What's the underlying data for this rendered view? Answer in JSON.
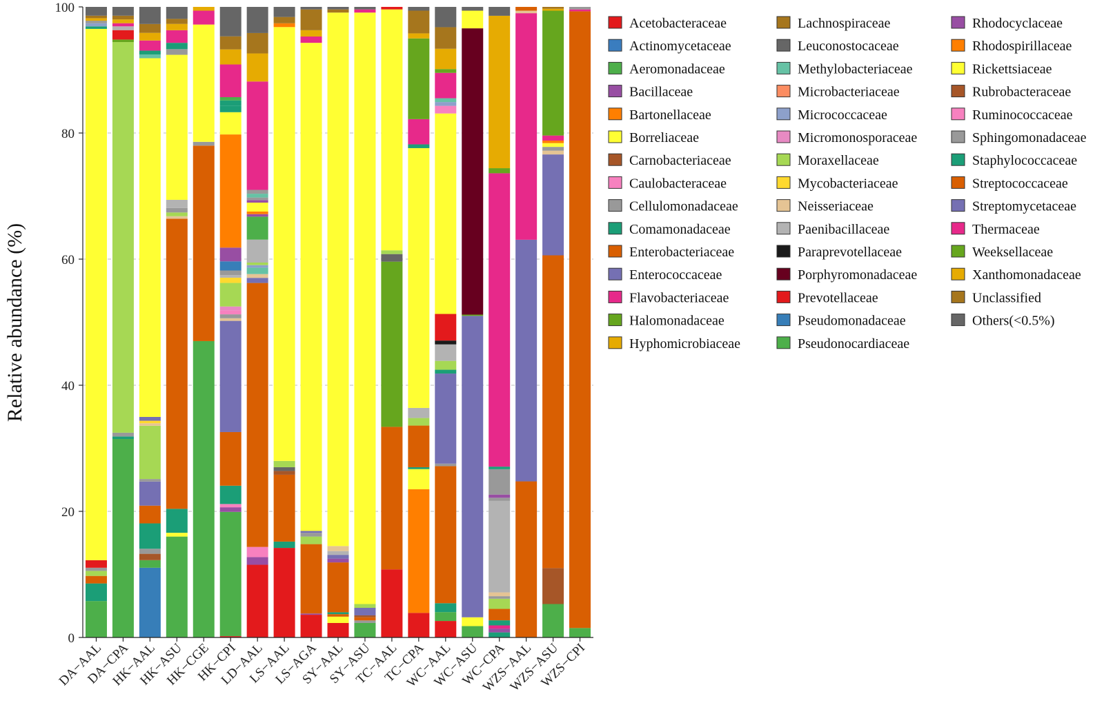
{
  "chart_data": {
    "type": "bar",
    "stacked": true,
    "title": "",
    "xlabel": "",
    "ylabel": "Relative abundance (%)",
    "ylim": [
      0,
      100
    ],
    "yticks": [
      0,
      20,
      40,
      60,
      80,
      100
    ],
    "grid": "horizontal dashed",
    "legend_position": "right",
    "categories": [
      "DA−AAL",
      "DA−CPA",
      "HK−AAL",
      "HK−ASU",
      "HK−CGE",
      "HK−CPI",
      "LD−AAL",
      "LS−AAL",
      "LS−AGA",
      "SY−AAL",
      "SY−ASU",
      "TC−AAL",
      "TC−CPA",
      "WC−AAL",
      "WC−ASU",
      "WC−CPA",
      "WZS−AAL",
      "WZS−ASU",
      "WZS−CPI"
    ],
    "series_colors": {
      "Acetobacteraceae": "#e31a1c",
      "Actinomycetaceae": "#3a7dbf",
      "Aeromonadaceae": "#4daf4a",
      "Bacillaceae": "#984ea3",
      "Bartonellaceae": "#ff7f00",
      "Borreliaceae": "#ffff33",
      "Carnobacteriaceae": "#a65628",
      "Caulobacteraceae": "#f781bf",
      "Cellulomonadaceae": "#999999",
      "Comamonadaceae": "#1b9e77",
      "Enterobacteriaceae": "#d95f02",
      "Enterococcaceae": "#7570b3",
      "Flavobacteriaceae": "#e7298a",
      "Halomonadaceae": "#66a61e",
      "Hyphomicrobiaceae": "#e6ab02",
      "Lachnospiraceae": "#a6761d",
      "Leuconostocaceae": "#666666",
      "Methylobacteriaceae": "#66c2a5",
      "Microbacteriaceae": "#fc8d62",
      "Micrococcaceae": "#8da0cb",
      "Micromonosporaceae": "#e78ac3",
      "Moraxellaceae": "#a6d854",
      "Mycobacteriaceae": "#ffd92f",
      "Neisseriaceae": "#e5c494",
      "Paenibacillaceae": "#b3b3b3",
      "Paraprevotellaceae": "#1a1a1a",
      "Porphyromonadaceae": "#67001f",
      "Prevotellaceae": "#e31a1c",
      "Pseudomonadaceae": "#377eb8",
      "Pseudonocardiaceae": "#4daf4a",
      "Rhodocyclaceae": "#984ea3",
      "Rhodospirillaceae": "#ff7f00",
      "Rickettsiaceae": "#ffff33",
      "Rubrobacteraceae": "#a65628",
      "Ruminococcaceae": "#f781bf",
      "Sphingomonadaceae": "#999999",
      "Staphylococcaceae": "#1b9e77",
      "Streptococcaceae": "#d95f02",
      "Streptomycetaceae": "#7570b3",
      "Thermaceae": "#e7298a",
      "Weeksellaceae": "#66a61e",
      "Xanthomonadaceae": "#e6ab02",
      "Unclassified": "#a6761d",
      "Others(<0.5%)": "#666666"
    },
    "legend_columns": [
      [
        "Acetobacteraceae",
        "Actinomycetaceae",
        "Aeromonadaceae",
        "Bacillaceae",
        "Bartonellaceae",
        "Borreliaceae",
        "Carnobacteriaceae",
        "Caulobacteraceae",
        "Cellulomonadaceae",
        "Comamonadaceae",
        "Enterobacteriaceae",
        "Enterococcaceae",
        "Flavobacteriaceae",
        "Halomonadaceae",
        "Hyphomicrobiaceae"
      ],
      [
        "Lachnospiraceae",
        "Leuconostocaceae",
        "Methylobacteriaceae",
        "Microbacteriaceae",
        "Micrococcaceae",
        "Micromonosporaceae",
        "Moraxellaceae",
        "Mycobacteriaceae",
        "Neisseriaceae",
        "Paenibacillaceae",
        "Paraprevotellaceae",
        "Porphyromonadaceae",
        "Prevotellaceae",
        "Pseudomonadaceae",
        "Pseudonocardiaceae"
      ],
      [
        "Rhodocyclaceae",
        "Rhodospirillaceae",
        "Rickettsiaceae",
        "Rubrobacteraceae",
        "Ruminococcaceae",
        "Sphingomonadaceae",
        "Staphylococcaceae",
        "Streptococcaceae",
        "Streptomycetaceae",
        "Thermaceae",
        "Weeksellaceae",
        "Xanthomonadaceae",
        "Unclassified",
        "Others(<0.5%)"
      ]
    ],
    "stacks": [
      [
        [
          "Aeromonadaceae",
          5.8
        ],
        [
          "Comamonadaceae",
          2.8
        ],
        [
          "Enterobacteriaceae",
          1.2
        ],
        [
          "Moraxellaceae",
          0.8
        ],
        [
          "Cellulomonadaceae",
          0.5
        ],
        [
          "Prevotellaceae",
          1.2
        ],
        [
          "Borreliaceae",
          84.6
        ],
        [
          "Staphylococcaceae",
          0.4
        ],
        [
          "Micrococcaceae",
          0.5
        ],
        [
          "Sphingomonadaceae",
          0.4
        ],
        [
          "Hyphomicrobiaceae",
          0.4
        ],
        [
          "Lachnospiraceae",
          0.4
        ],
        [
          "Others(<0.5%)",
          1.4
        ]
      ],
      [
        [
          "Aeromonadaceae",
          31.6
        ],
        [
          "Comamonadaceae",
          0.4
        ],
        [
          "Cellulomonadaceae",
          0.6
        ],
        [
          "Moraxellaceae",
          62.2
        ],
        [
          "Halomonadaceae",
          0.4
        ],
        [
          "Prevotellaceae",
          1.5
        ],
        [
          "Paenibacillaceae",
          0.6
        ],
        [
          "Flavobacteriaceae",
          0.5
        ],
        [
          "Hyphomicrobiaceae",
          0.6
        ],
        [
          "Lachnospiraceae",
          0.6
        ],
        [
          "Others(<0.5%)",
          1.4
        ]
      ],
      [
        [
          "Pseudomonadaceae",
          11.0
        ],
        [
          "Aeromonadaceae",
          1.2
        ],
        [
          "Carnobacteriaceae",
          1.0
        ],
        [
          "Sphingomonadaceae",
          0.8
        ],
        [
          "Comamonadaceae",
          4.0
        ],
        [
          "Enterobacteriaceae",
          2.8
        ],
        [
          "Enterococcaceae",
          3.8
        ],
        [
          "Cellulomonadaceae",
          0.4
        ],
        [
          "Moraxellaceae",
          8.4
        ],
        [
          "Neisseriaceae",
          0.4
        ],
        [
          "Mycobacteriaceae",
          0.4
        ],
        [
          "Streptomycetaceae",
          0.6
        ],
        [
          "Borreliaceae",
          56.6
        ],
        [
          "Methylobacteriaceae",
          0.6
        ],
        [
          "Staphylococcaceae",
          0.6
        ],
        [
          "Flavobacteriaceae",
          1.6
        ],
        [
          "Hyphomicrobiaceae",
          1.2
        ],
        [
          "Lachnospiraceae",
          1.4
        ],
        [
          "Others(<0.5%)",
          2.7
        ]
      ],
      [
        [
          "Aeromonadaceae",
          16.0
        ],
        [
          "Borreliaceae",
          0.6
        ],
        [
          "Comamonadaceae",
          3.8
        ],
        [
          "Enterobacteriaceae",
          46.0
        ],
        [
          "Neisseriaceae",
          0.4
        ],
        [
          "Moraxellaceae",
          0.6
        ],
        [
          "Sphingomonadaceae",
          0.7
        ],
        [
          "Paenibacillaceae",
          1.3
        ],
        [
          "Borreliaceae",
          23.0
        ],
        [
          "Cellulomonadaceae",
          0.9
        ],
        [
          "Staphylococcaceae",
          1.0
        ],
        [
          "Flavobacteriaceae",
          2.0
        ],
        [
          "Hyphomicrobiaceae",
          1.0
        ],
        [
          "Lachnospiraceae",
          0.8
        ],
        [
          "Others(<0.5%)",
          1.9
        ]
      ],
      [
        [
          "Aeromonadaceae",
          47.0
        ],
        [
          "Enterobacteriaceae",
          31.0
        ],
        [
          "Cellulomonadaceae",
          0.6
        ],
        [
          "Borreliaceae",
          18.6
        ],
        [
          "Flavobacteriaceae",
          2.2
        ],
        [
          "Hyphomicrobiaceae",
          0.6
        ]
      ],
      [
        [
          "Acetobacteraceae",
          0.2
        ],
        [
          "Aeromonadaceae",
          19.0
        ],
        [
          "Bacillaceae",
          0.7
        ],
        [
          "Caulobacteraceae",
          0.5
        ],
        [
          "Comamonadaceae",
          2.8
        ],
        [
          "Enterobacteriaceae",
          8.2
        ],
        [
          "Enterococcaceae",
          17.0
        ],
        [
          "Neisseriaceae",
          0.4
        ],
        [
          "Cellulomonadaceae",
          0.6
        ],
        [
          "Caulobacteraceae",
          0.6
        ],
        [
          "Micromonosporaceae",
          0.6
        ],
        [
          "Moraxellaceae",
          3.6
        ],
        [
          "Mycobacteriaceae",
          0.8
        ],
        [
          "Paenibacillaceae",
          0.4
        ],
        [
          "Cellulomonadaceae",
          0.7
        ],
        [
          "Pseudomonadaceae",
          1.4
        ],
        [
          "Bacillaceae",
          2.1
        ],
        [
          "Rhodospirillaceae",
          17.3
        ],
        [
          "Borreliaceae",
          3.4
        ],
        [
          "Comamonadaceae",
          1.0
        ],
        [
          "Staphylococcaceae",
          0.8
        ],
        [
          "Aeromonadaceae",
          0.5
        ],
        [
          "Flavobacteriaceae",
          5.0
        ],
        [
          "Hyphomicrobiaceae",
          2.3
        ],
        [
          "Lachnospiraceae",
          2.0
        ],
        [
          "Others(<0.5%)",
          4.5
        ]
      ],
      [
        [
          "Prevotellaceae",
          11.4
        ],
        [
          "Bacillaceae",
          1.2
        ],
        [
          "Caulobacteraceae",
          1.6
        ],
        [
          "Enterobacteriaceae",
          41.4
        ],
        [
          "Enterococcaceae",
          0.8
        ],
        [
          "Neisseriaceae",
          0.6
        ],
        [
          "Methylobacteriaceae",
          1.0
        ],
        [
          "Micrococcaceae",
          0.4
        ],
        [
          "Moraxellaceae",
          0.4
        ],
        [
          "Paenibacillaceae",
          3.6
        ],
        [
          "Aeromonadaceae",
          3.6
        ],
        [
          "Bacillaceae",
          0.4
        ],
        [
          "Bartonellaceae",
          0.4
        ],
        [
          "Rickettsiaceae",
          1.4
        ],
        [
          "Bacillaceae",
          0.4
        ],
        [
          "Cellulomonadaceae",
          0.4
        ],
        [
          "Methylobacteriaceae",
          0.6
        ],
        [
          "Cellulomonadaceae",
          0.6
        ],
        [
          "Flavobacteriaceae",
          17.0
        ],
        [
          "Hyphomicrobiaceae",
          4.4
        ],
        [
          "Lachnospiraceae",
          3.2
        ],
        [
          "Others(<0.5%)",
          4.1
        ]
      ],
      [
        [
          "Prevotellaceae",
          14.2
        ],
        [
          "Staphylococcaceae",
          1.0
        ],
        [
          "Enterobacteriaceae",
          10.6
        ],
        [
          "Carnobacteriaceae",
          0.6
        ],
        [
          "Leuconostocaceae",
          0.6
        ],
        [
          "Moraxellaceae",
          1.0
        ],
        [
          "Borreliaceae",
          68.8
        ],
        [
          "Rhodospirillaceae",
          0.6
        ],
        [
          "Lachnospiraceae",
          1.0
        ],
        [
          "Others(<0.5%)",
          1.6
        ]
      ],
      [
        [
          "Prevotellaceae",
          3.6
        ],
        [
          "Bacillaceae",
          0.2
        ],
        [
          "Enterobacteriaceae",
          11.0
        ],
        [
          "Moraxellaceae",
          1.2
        ],
        [
          "Sphingomonadaceae",
          0.6
        ],
        [
          "Streptomycetaceae",
          0.3
        ],
        [
          "Borreliaceae",
          77.4
        ],
        [
          "Flavobacteriaceae",
          1.0
        ],
        [
          "Hyphomicrobiaceae",
          1.0
        ],
        [
          "Lachnospiraceae",
          3.3
        ],
        [
          "Others(<0.5%)",
          0.4
        ]
      ],
      [
        [
          "Prevotellaceae",
          2.3
        ],
        [
          "Borreliaceae",
          1.0
        ],
        [
          "Enterobacteriaceae",
          0.4
        ],
        [
          "Comamonadaceae",
          0.3
        ],
        [
          "Enterobacteriaceae",
          7.9
        ],
        [
          "Bacillaceae",
          0.6
        ],
        [
          "Streptomycetaceae",
          0.6
        ],
        [
          "Paenibacillaceae",
          0.6
        ],
        [
          "Neisseriaceae",
          0.8
        ],
        [
          "Borreliaceae",
          84.6
        ],
        [
          "Lachnospiraceae",
          0.5
        ],
        [
          "Others(<0.5%)",
          0.4
        ]
      ],
      [
        [
          "Aeromonadaceae",
          2.3
        ],
        [
          "Cellulomonadaceae",
          0.4
        ],
        [
          "Enterobacteriaceae",
          0.5
        ],
        [
          "Carnobacteriaceae",
          0.3
        ],
        [
          "Enterococcaceae",
          1.2
        ],
        [
          "Moraxellaceae",
          0.6
        ],
        [
          "Borreliaceae",
          93.8
        ],
        [
          "Flavobacteriaceae",
          0.5
        ],
        [
          "Others(<0.5%)",
          0.4
        ]
      ],
      [
        [
          "Prevotellaceae",
          10.8
        ],
        [
          "Enterobacteriaceae",
          22.6
        ],
        [
          "Halomonadaceae",
          26.2
        ],
        [
          "Leuconostocaceae",
          1.2
        ],
        [
          "Moraxellaceae",
          0.6
        ],
        [
          "Borreliaceae",
          38.2
        ],
        [
          "Prevotellaceae",
          0.4
        ]
      ],
      [
        [
          "Prevotellaceae",
          3.9
        ],
        [
          "Rhodospirillaceae",
          19.6
        ],
        [
          "Borreliaceae",
          3.2
        ],
        [
          "Staphylococcaceae",
          0.3
        ],
        [
          "Enterobacteriaceae",
          6.6
        ],
        [
          "Moraxellaceae",
          1.2
        ],
        [
          "Paenibacillaceae",
          1.6
        ],
        [
          "Borreliaceae",
          41.2
        ],
        [
          "Comamonadaceae",
          0.6
        ],
        [
          "Flavobacteriaceae",
          4.0
        ],
        [
          "Halomonadaceae",
          12.8
        ],
        [
          "Hyphomicrobiaceae",
          0.8
        ],
        [
          "Lachnospiraceae",
          3.6
        ],
        [
          "Others(<0.5%)",
          0.6
        ]
      ],
      [
        [
          "Prevotellaceae",
          2.6
        ],
        [
          "Aeromonadaceae",
          1.4
        ],
        [
          "Comamonadaceae",
          1.4
        ],
        [
          "Enterobacteriaceae",
          21.6
        ],
        [
          "Cellulomonadaceae",
          0.4
        ],
        [
          "Enterococcaceae",
          14.2
        ],
        [
          "Staphylococcaceae",
          0.6
        ],
        [
          "Moraxellaceae",
          1.4
        ],
        [
          "Paenibacillaceae",
          2.6
        ],
        [
          "Paraprevotellaceae",
          0.6
        ],
        [
          "Prevotellaceae",
          4.2
        ],
        [
          "Borreliaceae",
          31.6
        ],
        [
          "Caulobacteraceae",
          1.2
        ],
        [
          "Micrococcaceae",
          0.6
        ],
        [
          "Methylobacteriaceae",
          0.6
        ],
        [
          "Flavobacteriaceae",
          4.0
        ],
        [
          "Halomonadaceae",
          0.6
        ],
        [
          "Hyphomicrobiaceae",
          3.2
        ],
        [
          "Lachnospiraceae",
          3.4
        ],
        [
          "Others(<0.5%)",
          3.2
        ]
      ],
      [
        [
          "Aeromonadaceae",
          1.8
        ],
        [
          "Borreliaceae",
          1.4
        ],
        [
          "Enterococcaceae",
          47.8
        ],
        [
          "Halomonadaceae",
          0.2
        ],
        [
          "Porphyromonadaceae",
          45.4
        ],
        [
          "Borreliaceae",
          2.8
        ],
        [
          "Others(<0.5%)",
          0.6
        ]
      ],
      [
        [
          "Comamonadaceae",
          0.8
        ],
        [
          "Bacillaceae",
          0.6
        ],
        [
          "Flavobacteriaceae",
          0.5
        ],
        [
          "Staphylococcaceae",
          0.8
        ],
        [
          "Enterobacteriaceae",
          1.8
        ],
        [
          "Moraxellaceae",
          1.6
        ],
        [
          "Cellulomonadaceae",
          0.4
        ],
        [
          "Neisseriaceae",
          0.6
        ],
        [
          "Paenibacillaceae",
          14.4
        ],
        [
          "Cellulomonadaceae",
          0.5
        ],
        [
          "Bacillaceae",
          0.5
        ],
        [
          "Sphingomonadaceae",
          4.0
        ],
        [
          "Comamonadaceae",
          0.4
        ],
        [
          "Flavobacteriaceae",
          46.2
        ],
        [
          "Halomonadaceae",
          0.8
        ],
        [
          "Hyphomicrobiaceae",
          24.0
        ],
        [
          "Others(<0.5%)",
          1.4
        ]
      ],
      [
        [
          "Enterobacteriaceae",
          24.8
        ],
        [
          "Enterococcaceae",
          38.4
        ],
        [
          "Flavobacteriaceae",
          36.0
        ],
        [
          "Neisseriaceae",
          0.4
        ],
        [
          "Streptococcaceae",
          0.6
        ]
      ],
      [
        [
          "Aeromonadaceae",
          5.3
        ],
        [
          "Rubrobacteraceae",
          5.7
        ],
        [
          "Streptococcaceae",
          49.6
        ],
        [
          "Streptomycetaceae",
          16.0
        ],
        [
          "Neisseriaceae",
          0.6
        ],
        [
          "Sphingomonadaceae",
          0.6
        ],
        [
          "Rickettsiaceae",
          0.6
        ],
        [
          "Rhodospirillaceae",
          0.4
        ],
        [
          "Thermaceae",
          0.8
        ],
        [
          "Weeksellaceae",
          19.8
        ],
        [
          "Xanthomonadaceae",
          0.3
        ],
        [
          "Lachnospiraceae",
          0.3
        ]
      ],
      [
        [
          "Aeromonadaceae",
          1.5
        ],
        [
          "Streptococcaceae",
          97.8
        ],
        [
          "Thermaceae",
          0.3
        ],
        [
          "Cellulomonadaceae",
          0.4
        ]
      ]
    ]
  }
}
